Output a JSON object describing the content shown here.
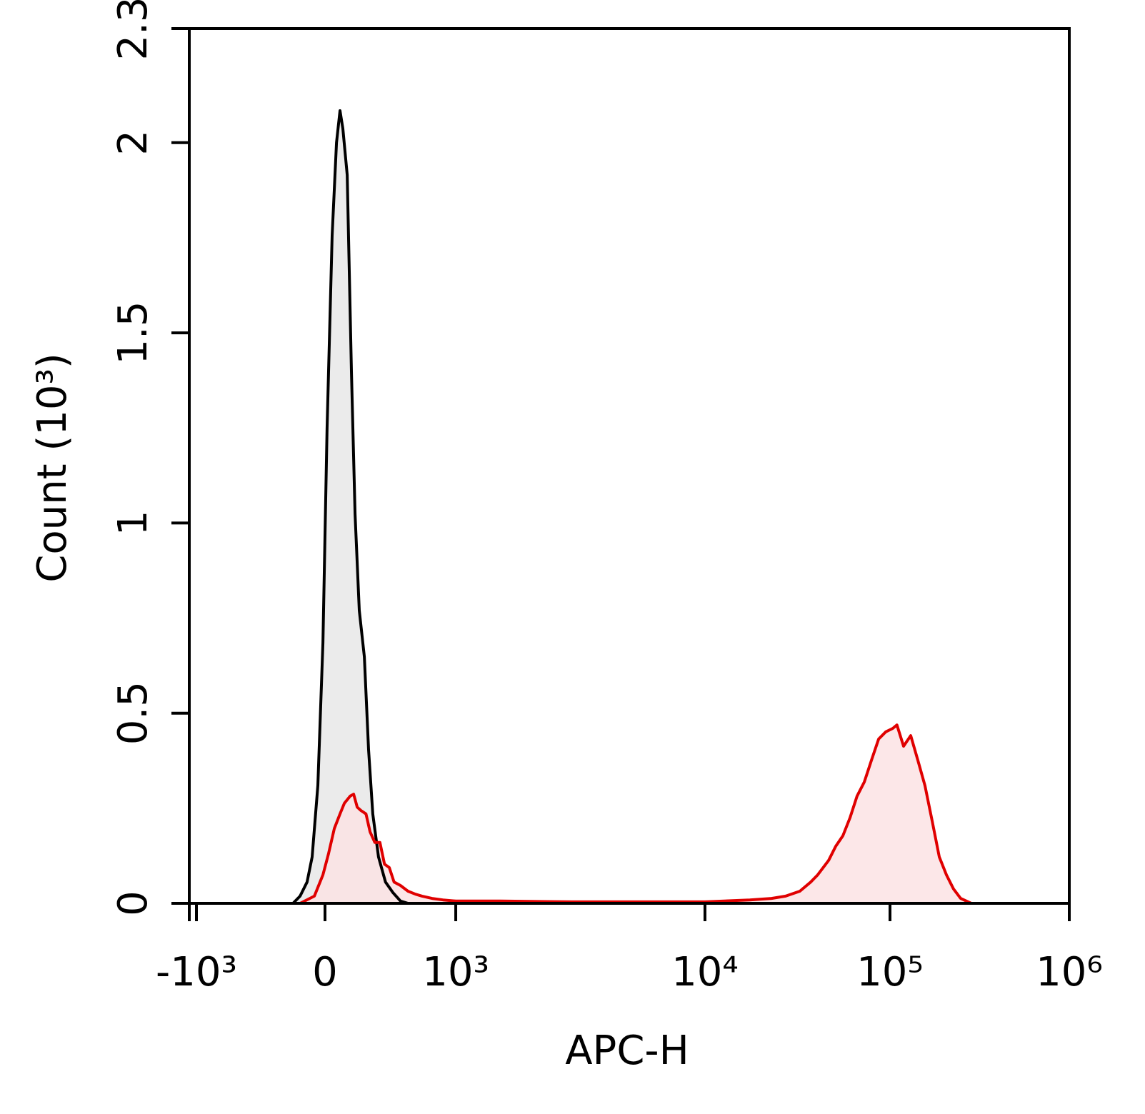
{
  "chart_data": {
    "type": "histogram-overlay",
    "x_label": "APC-H",
    "y_label": "Count (10³)",
    "xscale": "biexponential",
    "xlim": [
      -1000,
      1000000
    ],
    "xticks": [
      {
        "value": -1000,
        "label": "-10³"
      },
      0,
      {
        "value": 1000,
        "label": "10³"
      },
      {
        "value": 10000,
        "label": "10⁴"
      },
      {
        "value": 100000,
        "label": "10⁵"
      },
      {
        "value": 1000000,
        "label": "10⁶"
      }
    ],
    "ylim": [
      0,
      2.3
    ],
    "yticks": [
      0,
      0.5,
      1,
      1.5,
      2,
      2.3
    ],
    "series": [
      {
        "color": "#000000",
        "fill": "#e8e8e8",
        "x": [
          -204,
          -158,
          -113,
          -81,
          -45,
          -13,
          13,
          44,
          71,
          93,
          111,
          138,
          165,
          188,
          215,
          248,
          276,
          304,
          343,
          392,
          446,
          502,
          560
        ],
        "values": [
          0,
          0.019,
          0.056,
          0.122,
          0.31,
          0.685,
          1.249,
          1.756,
          2.0,
          2.084,
          2.037,
          1.915,
          1.399,
          1.023,
          0.77,
          0.648,
          0.404,
          0.235,
          0.122,
          0.056,
          0.028,
          0.006,
          0
        ]
      },
      {
        "color": "#e00000",
        "fill": "#fbe3e4",
        "x": [
          -158,
          -67,
          -13,
          22,
          58,
          93,
          120,
          157,
          179,
          202,
          226,
          259,
          286,
          318,
          353,
          385,
          419,
          454,
          502,
          560,
          621,
          676,
          764,
          868,
          1000,
          1568,
          3045,
          5768,
          10000,
          17500,
          22900,
          27300,
          32600,
          37300,
          40700,
          46600,
          50900,
          55700,
          60800,
          66400,
          72600,
          79400,
          86800,
          94900,
          103600,
          109300,
          119000,
          130500,
          143000,
          156600,
          171900,
          188400,
          206500,
          226000,
          247800,
          284000
        ],
        "values": [
          0,
          0.019,
          0.075,
          0.131,
          0.197,
          0.235,
          0.263,
          0.282,
          0.287,
          0.253,
          0.244,
          0.235,
          0.188,
          0.16,
          0.16,
          0.103,
          0.094,
          0.056,
          0.047,
          0.032,
          0.024,
          0.019,
          0.013,
          0.009,
          0.006,
          0.006,
          0.004,
          0.004,
          0.004,
          0.009,
          0.013,
          0.019,
          0.032,
          0.056,
          0.075,
          0.113,
          0.15,
          0.178,
          0.225,
          0.282,
          0.319,
          0.376,
          0.432,
          0.451,
          0.46,
          0.469,
          0.413,
          0.441,
          0.376,
          0.31,
          0.216,
          0.122,
          0.075,
          0.038,
          0.013,
          0
        ]
      }
    ]
  }
}
